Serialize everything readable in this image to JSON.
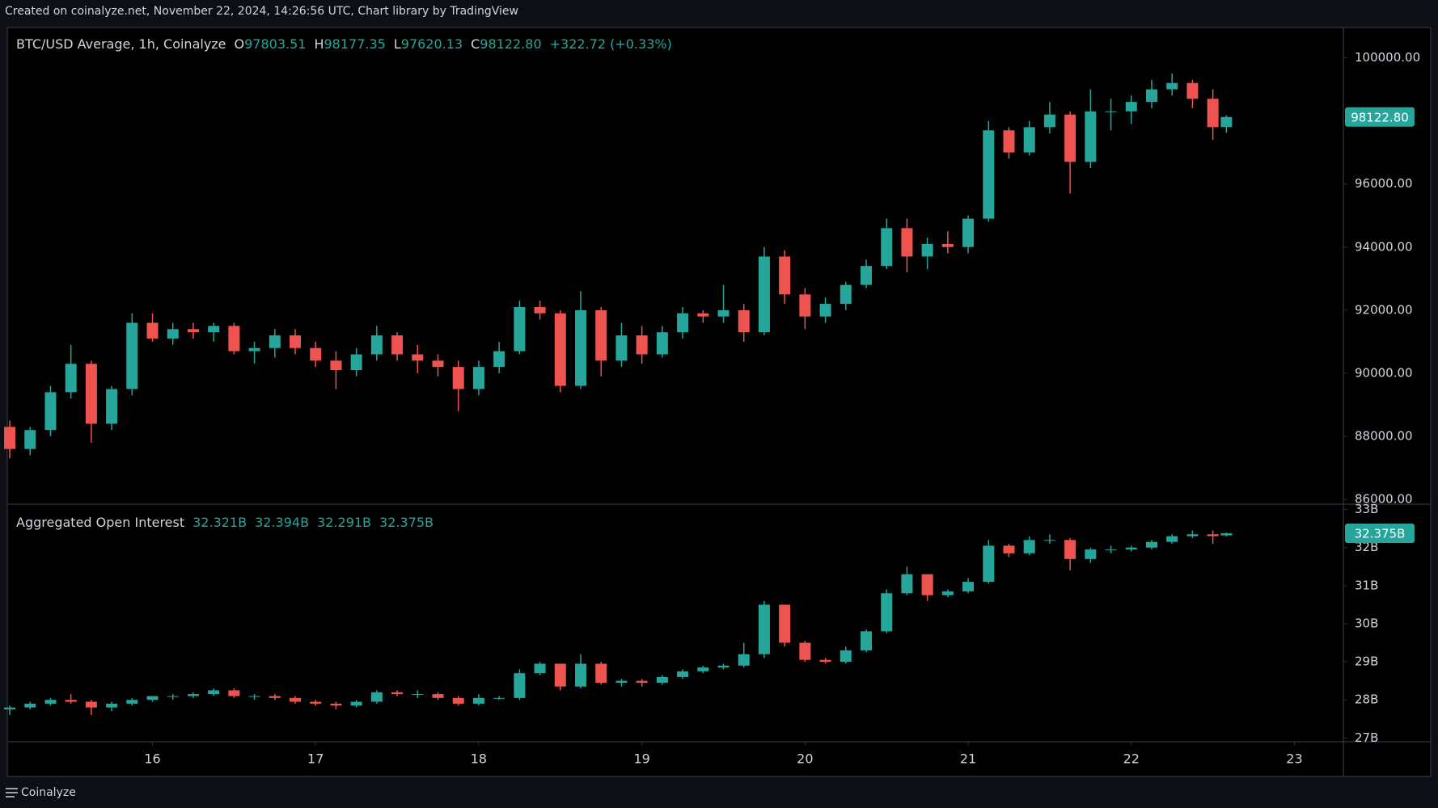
{
  "header": {
    "text": "Created on coinalyze.net, November 22, 2024, 14:26:56 UTC, Chart library by TradingView"
  },
  "footer": {
    "brand": "Coinalyze"
  },
  "chart_data": [
    {
      "type": "candlestick",
      "title": "BTC/USD Average, 1h, Coinalyze",
      "legend_items": [
        {
          "key": "O",
          "value": "97803.51"
        },
        {
          "key": "H",
          "value": "98177.35"
        },
        {
          "key": "L",
          "value": "97620.13"
        },
        {
          "key": "C",
          "value": "98122.80"
        }
      ],
      "change_label": "+322.72 (+0.33%)",
      "last_label": "98122.80",
      "up_color": "#26a69a",
      "down_color": "#ef5350",
      "xlim": [
        15.11,
        23.3
      ],
      "ylim": [
        85850,
        100960
      ],
      "yticks": [
        {
          "value": 86000,
          "label": "86000.00"
        },
        {
          "value": 88000,
          "label": "88000.00"
        },
        {
          "value": 90000,
          "label": "90000.00"
        },
        {
          "value": 92000,
          "label": "92000.00"
        },
        {
          "value": 94000,
          "label": "94000.00"
        },
        {
          "value": 96000,
          "label": "96000.00"
        },
        {
          "value": 98000,
          "label": "98000.00"
        },
        {
          "value": 100000,
          "label": "100000.00"
        }
      ],
      "x": [
        15.125,
        15.25,
        15.375,
        15.5,
        15.625,
        15.75,
        15.875,
        16,
        16.125,
        16.25,
        16.375,
        16.5,
        16.625,
        16.75,
        16.875,
        17,
        17.125,
        17.25,
        17.375,
        17.5,
        17.625,
        17.75,
        17.875,
        18,
        18.125,
        18.25,
        18.375,
        18.5,
        18.625,
        18.75,
        18.875,
        19,
        19.125,
        19.25,
        19.375,
        19.5,
        19.625,
        19.75,
        19.875,
        20,
        20.125,
        20.25,
        20.375,
        20.5,
        20.625,
        20.75,
        20.875,
        21,
        21.125,
        21.25,
        21.375,
        21.5,
        21.625,
        21.75,
        21.875,
        22,
        22.125,
        22.25,
        22.375,
        22.5,
        22.583
      ],
      "open": [
        88300,
        87600,
        88200,
        89400,
        90300,
        88400,
        89500,
        91600,
        91100,
        91400,
        91300,
        91500,
        90700,
        90800,
        91200,
        90800,
        90400,
        90100,
        90600,
        91200,
        90600,
        90400,
        90200,
        89500,
        90200,
        90700,
        92100,
        91900,
        89600,
        92000,
        90400,
        91200,
        90600,
        91300,
        91900,
        91800,
        92000,
        91300,
        93700,
        92500,
        91800,
        92200,
        92800,
        93400,
        94600,
        93700,
        94100,
        94000,
        94900,
        97700,
        97000,
        97800,
        98200,
        96700,
        98300,
        98300,
        98600,
        99000,
        99200,
        98700,
        97803.51
      ],
      "high": [
        88500,
        88300,
        89600,
        90900,
        90400,
        89600,
        91900,
        91900,
        91600,
        91600,
        91600,
        91600,
        91000,
        91400,
        91400,
        91000,
        90700,
        90800,
        91500,
        91300,
        90900,
        90600,
        90400,
        90400,
        91000,
        92300,
        92300,
        92000,
        92600,
        92100,
        91600,
        91500,
        91500,
        92100,
        92000,
        92800,
        92200,
        94000,
        93900,
        92700,
        92400,
        92900,
        93600,
        94900,
        94900,
        94300,
        94500,
        95000,
        98000,
        97800,
        98000,
        98600,
        98300,
        99000,
        98700,
        98800,
        99300,
        99500,
        99300,
        99000,
        98177.35
      ],
      "low": [
        87300,
        87400,
        88000,
        89200,
        87800,
        88200,
        89300,
        91000,
        90900,
        91100,
        91000,
        90600,
        90300,
        90500,
        90600,
        90200,
        89500,
        89900,
        90400,
        90400,
        90000,
        89900,
        88800,
        89300,
        90000,
        90600,
        91700,
        89400,
        89500,
        89900,
        90200,
        90300,
        90500,
        91100,
        91600,
        91600,
        91000,
        91200,
        92200,
        91400,
        91600,
        92000,
        92700,
        93300,
        93200,
        93300,
        93800,
        93800,
        94800,
        96800,
        96900,
        97600,
        95700,
        96500,
        97700,
        97900,
        98400,
        98800,
        98400,
        97400,
        97620.13
      ],
      "close": [
        87600,
        88200,
        89400,
        90300,
        88400,
        89500,
        91600,
        91100,
        91400,
        91300,
        91500,
        90700,
        90800,
        91200,
        90800,
        90400,
        90100,
        90600,
        91200,
        90600,
        90400,
        90200,
        89500,
        90200,
        90700,
        92100,
        91900,
        89600,
        92000,
        90400,
        91200,
        90600,
        91300,
        91900,
        91800,
        92000,
        91300,
        93700,
        92500,
        91800,
        92200,
        92800,
        93400,
        94600,
        93700,
        94100,
        94000,
        94900,
        97700,
        97000,
        97800,
        98200,
        96700,
        98300,
        98300,
        98600,
        99000,
        99200,
        98700,
        97800,
        98122.8
      ]
    },
    {
      "type": "candlestick",
      "title": "Aggregated Open Interest",
      "legend_values": [
        "32.321B",
        "32.394B",
        "32.291B",
        "32.375B"
      ],
      "last_label": "32.375B",
      "up_color": "#26a69a",
      "down_color": "#ef5350",
      "xlim": [
        15.11,
        23.3
      ],
      "xticks": [
        16,
        17,
        18,
        19,
        20,
        21,
        22,
        23
      ],
      "ylim": [
        26.9,
        33.14
      ],
      "yticks": [
        {
          "value": 27,
          "label": "27B"
        },
        {
          "value": 28,
          "label": "28B"
        },
        {
          "value": 29,
          "label": "29B"
        },
        {
          "value": 30,
          "label": "30B"
        },
        {
          "value": 31,
          "label": "31B"
        },
        {
          "value": 32,
          "label": "32B"
        },
        {
          "value": 33,
          "label": "33B"
        }
      ],
      "x": [
        15.125,
        15.25,
        15.375,
        15.5,
        15.625,
        15.75,
        15.875,
        16,
        16.125,
        16.25,
        16.375,
        16.5,
        16.625,
        16.75,
        16.875,
        17,
        17.125,
        17.25,
        17.375,
        17.5,
        17.625,
        17.75,
        17.875,
        18,
        18.125,
        18.25,
        18.375,
        18.5,
        18.625,
        18.75,
        18.875,
        19,
        19.125,
        19.25,
        19.375,
        19.5,
        19.625,
        19.75,
        19.875,
        20,
        20.125,
        20.25,
        20.375,
        20.5,
        20.625,
        20.75,
        20.875,
        21,
        21.125,
        21.25,
        21.375,
        21.5,
        21.625,
        21.75,
        21.875,
        22,
        22.125,
        22.25,
        22.375,
        22.5,
        22.583
      ],
      "open": [
        27.75,
        27.8,
        27.9,
        28,
        27.95,
        27.8,
        27.9,
        28,
        28.1,
        28.1,
        28.15,
        28.25,
        28.1,
        28.1,
        28.05,
        27.95,
        27.9,
        27.85,
        27.95,
        28.2,
        28.15,
        28.15,
        28.05,
        27.9,
        28.05,
        28.05,
        28.7,
        28.95,
        28.35,
        28.95,
        28.45,
        28.5,
        28.45,
        28.6,
        28.75,
        28.85,
        28.9,
        29.2,
        30.5,
        29.5,
        29.05,
        29,
        29.3,
        29.8,
        30.8,
        31.3,
        30.75,
        30.85,
        31.1,
        32.05,
        31.85,
        32.2,
        32.2,
        31.7,
        31.95,
        31.95,
        32,
        32.15,
        32.3,
        32.35,
        32.321
      ],
      "high": [
        27.85,
        27.95,
        28.05,
        28.15,
        28,
        27.95,
        28.05,
        28.1,
        28.15,
        28.2,
        28.3,
        28.3,
        28.15,
        28.15,
        28.1,
        28,
        27.95,
        28,
        28.25,
        28.25,
        28.25,
        28.2,
        28.1,
        28.15,
        28.1,
        28.8,
        29,
        28.95,
        29.2,
        29,
        28.55,
        28.55,
        28.65,
        28.8,
        28.9,
        28.95,
        29.5,
        30.6,
        30.5,
        29.55,
        29.1,
        29.4,
        29.85,
        30.9,
        31.5,
        31.3,
        30.9,
        31.2,
        32.2,
        32.1,
        32.3,
        32.35,
        32.25,
        32,
        32.05,
        32.05,
        32.2,
        32.35,
        32.45,
        32.45,
        32.394
      ],
      "low": [
        27.6,
        27.75,
        27.85,
        27.9,
        27.6,
        27.7,
        27.85,
        27.95,
        28,
        28.05,
        28.1,
        28.05,
        28,
        28,
        27.9,
        27.85,
        27.75,
        27.8,
        27.9,
        28.1,
        28.05,
        28,
        27.85,
        27.85,
        28,
        28,
        28.65,
        28.25,
        28.3,
        28.4,
        28.35,
        28.35,
        28.4,
        28.55,
        28.7,
        28.8,
        28.85,
        29.1,
        29.4,
        29,
        28.95,
        28.95,
        29.25,
        29.75,
        30.75,
        30.6,
        30.7,
        30.8,
        31.05,
        31.75,
        31.8,
        32.1,
        31.4,
        31.6,
        31.85,
        31.9,
        31.95,
        32.1,
        32.25,
        32.1,
        32.291
      ],
      "close": [
        27.8,
        27.9,
        28,
        27.95,
        27.8,
        27.9,
        28,
        28.1,
        28.1,
        28.15,
        28.25,
        28.1,
        28.1,
        28.05,
        27.95,
        27.9,
        27.85,
        27.95,
        28.2,
        28.15,
        28.15,
        28.05,
        27.9,
        28.05,
        28.05,
        28.7,
        28.95,
        28.35,
        28.95,
        28.45,
        28.5,
        28.45,
        28.6,
        28.75,
        28.85,
        28.9,
        29.2,
        30.5,
        29.5,
        29.05,
        29,
        29.3,
        29.8,
        30.8,
        31.3,
        30.75,
        30.85,
        31.1,
        32.05,
        31.85,
        32.2,
        32.2,
        31.7,
        31.95,
        31.95,
        32,
        32.15,
        32.3,
        32.35,
        32.3,
        32.375
      ]
    }
  ]
}
